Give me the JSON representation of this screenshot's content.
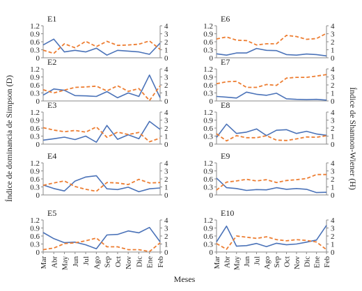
{
  "figure": {
    "xlabel": "Meses",
    "ylabel_left": "Índice de dominancia de Simpson (D)",
    "ylabel_right": "Índice de Shannon-Wiener (H)",
    "months": [
      "Mar",
      "Abr",
      "May",
      "Jun",
      "Jul",
      "Ago",
      "Sep",
      "Oct",
      "Nov",
      "Dic",
      "Ene",
      "Feb"
    ],
    "d_ticks": [
      "0",
      "0.3",
      "0.6",
      "0.9",
      "1.2"
    ],
    "h_ticks": [
      "0",
      "1",
      "2",
      "3",
      "4"
    ],
    "colors": {
      "simpson": "#4a72b8",
      "shannon": "#ed7d31",
      "axis": "#888888"
    }
  },
  "chart_data": [
    {
      "type": "line",
      "title": "E1",
      "ylim_left": [
        0,
        1.2
      ],
      "ylim_right": [
        0,
        4
      ],
      "series": [
        {
          "axis": "left",
          "style": "solid",
          "values": [
            0.48,
            0.7,
            0.22,
            0.28,
            0.22,
            0.36,
            0.1,
            0.28,
            0.25,
            0.22,
            0.13,
            0.55
          ]
        },
        {
          "axis": "right",
          "style": "dashed",
          "values": [
            0.95,
            0.55,
            1.75,
            1.25,
            2.05,
            1.4,
            2.05,
            1.55,
            1.6,
            1.7,
            2.1,
            1.05
          ]
        }
      ]
    },
    {
      "type": "line",
      "title": "E2",
      "ylim_left": [
        0,
        1.2
      ],
      "ylim_right": [
        0,
        4
      ],
      "series": [
        {
          "axis": "left",
          "style": "solid",
          "values": [
            0.22,
            0.45,
            0.4,
            0.2,
            0.19,
            0.17,
            0.35,
            0.12,
            0.3,
            0.17,
            0.97,
            0.12
          ]
        },
        {
          "axis": "right",
          "style": "dashed",
          "values": [
            1.4,
            1.0,
            1.35,
            1.7,
            1.75,
            1.85,
            1.25,
            1.9,
            1.2,
            1.55,
            0.05,
            1.9
          ]
        }
      ]
    },
    {
      "type": "line",
      "title": "E3",
      "ylim_left": [
        0,
        1.2
      ],
      "ylim_right": [
        0,
        4
      ],
      "series": [
        {
          "axis": "left",
          "style": "solid",
          "values": [
            0.15,
            0.2,
            0.26,
            0.17,
            0.3,
            0.07,
            0.7,
            0.18,
            0.35,
            0.2,
            0.85,
            0.55
          ]
        },
        {
          "axis": "right",
          "style": "dashed",
          "values": [
            2.05,
            1.75,
            1.55,
            1.7,
            1.5,
            2.15,
            0.85,
            1.5,
            1.2,
            1.45,
            0.3,
            0.75
          ]
        }
      ]
    },
    {
      "type": "line",
      "title": "E4",
      "ylim_left": [
        0,
        1.2
      ],
      "ylim_right": [
        0,
        4
      ],
      "series": [
        {
          "axis": "left",
          "style": "solid",
          "values": [
            0.37,
            0.24,
            0.15,
            0.52,
            0.67,
            0.72,
            0.23,
            0.2,
            0.29,
            0.12,
            0.23,
            0.26
          ]
        },
        {
          "axis": "right",
          "style": "dashed",
          "values": [
            1.2,
            1.5,
            1.75,
            1.05,
            0.7,
            0.45,
            1.55,
            1.5,
            1.3,
            1.95,
            1.5,
            1.55
          ]
        }
      ]
    },
    {
      "type": "line",
      "title": "E5",
      "ylim_left": [
        0,
        1.2
      ],
      "ylim_right": [
        0,
        4
      ],
      "series": [
        {
          "axis": "left",
          "style": "solid",
          "values": [
            0.73,
            0.5,
            0.35,
            0.37,
            0.27,
            0.12,
            0.64,
            0.66,
            0.79,
            0.72,
            0.92,
            0.38
          ]
        },
        {
          "axis": "right",
          "style": "dashed",
          "values": [
            0.3,
            0.5,
            1.05,
            1.15,
            1.4,
            1.75,
            0.65,
            0.65,
            0.3,
            0.3,
            0.05,
            1.15
          ]
        }
      ]
    },
    {
      "type": "line",
      "title": "E6",
      "ylim_left": [
        0,
        1.2
      ],
      "ylim_right": [
        0,
        4
      ],
      "series": [
        {
          "axis": "left",
          "style": "solid",
          "values": [
            0.15,
            0.1,
            0.18,
            0.18,
            0.35,
            0.28,
            0.27,
            0.12,
            0.1,
            0.14,
            0.12,
            0.07
          ]
        },
        {
          "axis": "right",
          "style": "dashed",
          "values": [
            2.35,
            2.6,
            2.2,
            2.15,
            1.6,
            1.75,
            1.75,
            2.8,
            2.65,
            2.3,
            2.4,
            3.05
          ]
        }
      ]
    },
    {
      "type": "line",
      "title": "E7",
      "ylim_left": [
        0,
        1.2
      ],
      "ylim_right": [
        0,
        4
      ],
      "series": [
        {
          "axis": "left",
          "style": "solid",
          "values": [
            0.17,
            0.14,
            0.11,
            0.33,
            0.25,
            0.21,
            0.29,
            0.08,
            0.06,
            0.05,
            0.06,
            0.03
          ]
        },
        {
          "axis": "right",
          "style": "dashed",
          "values": [
            2.15,
            2.4,
            2.45,
            1.7,
            1.7,
            2.05,
            1.95,
            2.85,
            2.95,
            2.95,
            3.1,
            3.3
          ]
        }
      ]
    },
    {
      "type": "line",
      "title": "E8",
      "ylim_left": [
        0,
        1.2
      ],
      "ylim_right": [
        0,
        4
      ],
      "series": [
        {
          "axis": "left",
          "style": "solid",
          "values": [
            0.25,
            0.75,
            0.4,
            0.45,
            0.57,
            0.32,
            0.52,
            0.54,
            0.4,
            0.48,
            0.38,
            0.33
          ]
        },
        {
          "axis": "right",
          "style": "dashed",
          "values": [
            1.3,
            0.4,
            1.05,
            0.8,
            0.8,
            1.05,
            0.5,
            0.45,
            0.65,
            0.9,
            0.85,
            1.05
          ]
        }
      ]
    },
    {
      "type": "line",
      "title": "E9",
      "ylim_left": [
        0,
        1.2
      ],
      "ylim_right": [
        0,
        4
      ],
      "series": [
        {
          "axis": "left",
          "style": "solid",
          "values": [
            0.63,
            0.27,
            0.24,
            0.17,
            0.2,
            0.19,
            0.27,
            0.21,
            0.24,
            0.21,
            0.09,
            0.1
          ]
        },
        {
          "axis": "right",
          "style": "dashed",
          "values": [
            0.6,
            1.6,
            1.75,
            1.95,
            1.75,
            1.9,
            1.55,
            1.8,
            1.9,
            2.05,
            2.55,
            2.55
          ]
        }
      ]
    },
    {
      "type": "line",
      "title": "E10",
      "ylim_left": [
        0,
        1.2
      ],
      "ylim_right": [
        0,
        4
      ],
      "series": [
        {
          "axis": "left",
          "style": "solid",
          "values": [
            0.38,
            0.97,
            0.22,
            0.24,
            0.32,
            0.2,
            0.33,
            0.27,
            0.3,
            0.37,
            0.45,
            1.0
          ]
        },
        {
          "axis": "right",
          "style": "dashed",
          "values": [
            1.05,
            0.35,
            2.0,
            1.85,
            1.7,
            1.9,
            1.55,
            1.4,
            1.55,
            1.45,
            1.25,
            0.3
          ]
        }
      ]
    }
  ]
}
